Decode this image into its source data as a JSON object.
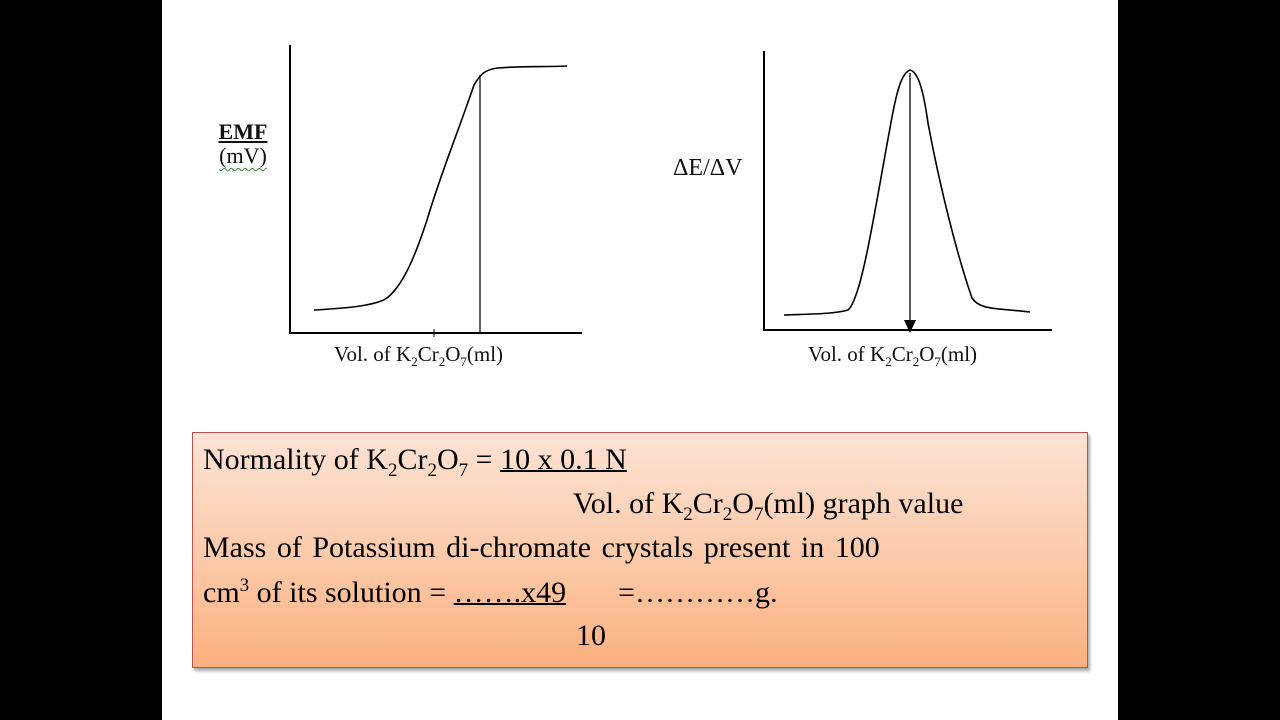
{
  "left_graph": {
    "y_label_title": "EMF",
    "y_label_unit": "(mV)",
    "x_label_prefix": "Vol. of K",
    "x_label_sub1": "2",
    "x_label_mid": "Cr",
    "x_label_sub2": "2",
    "x_label_mid2": "O",
    "x_label_sub3": "7",
    "x_label_suffix": "(ml)"
  },
  "right_graph": {
    "y_label": "ΔE/ΔV",
    "x_label_prefix": "Vol. of K",
    "x_label_sub1": "2",
    "x_label_mid": "Cr",
    "x_label_sub2": "2",
    "x_label_mid2": "O",
    "x_label_sub3": "7",
    "x_label_suffix": "(ml)"
  },
  "formula": {
    "line1_prefix": "Normality of K",
    "line1_sub1": "2",
    "line1_mid": "Cr",
    "line1_sub2": "2",
    "line1_mid2": "O",
    "line1_sub3": "7",
    "line1_eq": " = ",
    "line1_numerator": "10 x 0.1 N",
    "line2_prefix": "Vol. of K",
    "line2_sub1": "2",
    "line2_mid": "Cr",
    "line2_sub2": "2",
    "line2_mid2": "O",
    "line2_sub3": "7",
    "line2_suffix": "(ml) graph value",
    "line3": "Mass of Potassium di-chromate crystals present in 100",
    "line4_prefix": "cm",
    "line4_sup": "3",
    "line4_mid": " of its solution = ",
    "line4_numerator": "…….x49",
    "line4_result": "=…………g.",
    "line5_denominator": "10"
  }
}
